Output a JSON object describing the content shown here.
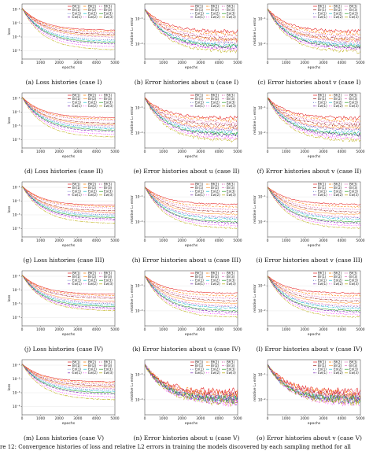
{
  "figure_caption": "re 12: Convergence histories of loss and relative L2 errors in training the models discovered by each sampling method for all",
  "legend_labels": [
    "Bf(1)",
    "Bf(2)",
    "Bf(3)",
    "Br(1)",
    "Br(2)",
    "Br(3)",
    "Eo(1)",
    "Eo(2)",
    "Eo(3)",
    "Ew(1)",
    "Ew(2)",
    "Ew(3)"
  ],
  "legend_colors": [
    "#e41a1c",
    "#ff7f00",
    "#c51b8a",
    "#9e1a1a",
    "#ff9a3c",
    "#e377c2",
    "#1f3fb4",
    "#17becf",
    "#2ca02c",
    "#6a0dad",
    "#ff00ff",
    "#b8a900"
  ],
  "chart_data": [
    {
      "id": "a",
      "caption": "(a) Loss histories (case I)",
      "type": "line",
      "xlabel": "epochs",
      "ylabel": "loss",
      "xlim": [
        0,
        5000
      ],
      "xticks": [
        "0",
        "1000",
        "2000",
        "3000",
        "4000",
        "5000"
      ],
      "yticks": [
        "10⁻¹",
        "10⁻²",
        "10⁻³",
        "10⁻⁴"
      ],
      "ylim_decades": [
        -4.6,
        -0.6
      ],
      "start": -0.9,
      "ends": [
        -2.5,
        -2.6,
        -2.7,
        -2.8,
        -2.9,
        -3.0,
        -3.2,
        -3.3,
        -3.4,
        -3.5,
        -3.7,
        -3.9
      ],
      "noise": 0.02
    },
    {
      "id": "b",
      "caption": "(b) Error histories about u (case I)",
      "type": "line",
      "xlabel": "epochs",
      "ylabel": "relative L₂ error",
      "xlim": [
        0,
        5000
      ],
      "xticks": [
        "0",
        "1000",
        "2000",
        "3000",
        "4000",
        "5000"
      ],
      "yticks": [
        "10⁻¹",
        "10⁻²"
      ],
      "ylim_decades": [
        -2.6,
        -0.4
      ],
      "start": -0.6,
      "ends": [
        -1.5,
        -1.6,
        -1.7,
        -1.8,
        -1.85,
        -1.9,
        -2.0,
        -2.05,
        -2.1,
        -2.15,
        -2.2,
        -2.3
      ],
      "noise": 0.06
    },
    {
      "id": "c",
      "caption": "(c) Error histories about v (case I)",
      "type": "line",
      "xlabel": "epochs",
      "ylabel": "relative L₂ error",
      "xlim": [
        0,
        5000
      ],
      "xticks": [
        "0",
        "1000",
        "2000",
        "3000",
        "4000",
        "5000"
      ],
      "yticks": [
        "10⁻¹",
        "10⁻²"
      ],
      "ylim_decades": [
        -2.6,
        -0.4
      ],
      "start": -0.6,
      "ends": [
        -1.5,
        -1.6,
        -1.7,
        -1.8,
        -1.85,
        -1.9,
        -2.0,
        -2.05,
        -2.1,
        -2.15,
        -2.2,
        -2.3
      ],
      "noise": 0.06
    },
    {
      "id": "d",
      "caption": "(d) Loss histories (case II)",
      "type": "line",
      "xlabel": "epochs",
      "ylabel": "loss",
      "xlim": [
        0,
        5000
      ],
      "xticks": [
        "0",
        "1000",
        "2000",
        "3000",
        "4000",
        "5000"
      ],
      "yticks": [
        "10⁻¹",
        "10⁻²",
        "10⁻³",
        "10⁻⁴"
      ],
      "ylim_decades": [
        -4.6,
        -0.6
      ],
      "start": -0.9,
      "ends": [
        -2.4,
        -2.5,
        -2.6,
        -2.8,
        -2.9,
        -3.0,
        -3.1,
        -3.2,
        -3.3,
        -3.4,
        -3.6,
        -3.8
      ],
      "noise": 0.02
    },
    {
      "id": "e",
      "caption": "(e) Error histories about u (case II)",
      "type": "line",
      "xlabel": "epochs",
      "ylabel": "relative L₂ error",
      "xlim": [
        0,
        5000
      ],
      "xticks": [
        "0",
        "1000",
        "2000",
        "3000",
        "4000",
        "5000"
      ],
      "yticks": [
        "10⁻¹",
        "10⁻²"
      ],
      "ylim_decades": [
        -2.6,
        -0.4
      ],
      "start": -0.6,
      "ends": [
        -1.4,
        -1.5,
        -1.6,
        -1.7,
        -1.8,
        -1.85,
        -1.9,
        -2.0,
        -2.05,
        -2.1,
        -2.2,
        -2.3
      ],
      "noise": 0.06
    },
    {
      "id": "f",
      "caption": "(f) Error histories about v (case II)",
      "type": "line",
      "xlabel": "epochs",
      "ylabel": "relative L₂ error",
      "xlim": [
        0,
        5000
      ],
      "xticks": [
        "0",
        "1000",
        "2000",
        "3000",
        "4000",
        "5000"
      ],
      "yticks": [
        "10⁻¹",
        "10⁻²"
      ],
      "ylim_decades": [
        -2.6,
        -0.4
      ],
      "start": -0.6,
      "ends": [
        -1.4,
        -1.5,
        -1.6,
        -1.7,
        -1.8,
        -1.85,
        -1.9,
        -2.0,
        -2.05,
        -2.1,
        -2.2,
        -2.3
      ],
      "noise": 0.06
    },
    {
      "id": "g",
      "caption": "(g) Loss histories (case III)",
      "type": "line",
      "xlabel": "epochs",
      "ylabel": "loss",
      "xlim": [
        0,
        5000
      ],
      "xticks": [
        "0",
        "1000",
        "2000",
        "3000",
        "4000",
        "5000"
      ],
      "yticks": [
        "10⁻¹",
        "10⁻²",
        "10⁻³",
        "10⁻⁴"
      ],
      "ylim_decades": [
        -4.6,
        -0.6
      ],
      "start": -0.9,
      "ends": [
        -2.3,
        -2.4,
        -2.5,
        -2.7,
        -2.8,
        -2.9,
        -3.0,
        -3.1,
        -3.2,
        -3.3,
        -3.4,
        -3.6
      ],
      "noise": 0.015
    },
    {
      "id": "h",
      "caption": "(h) Error histories about u (case III)",
      "type": "line",
      "xlabel": "epochs",
      "ylabel": "relative L₂ error",
      "xlim": [
        0,
        5000
      ],
      "xticks": [
        "0",
        "1000",
        "2000",
        "3000",
        "4000",
        "5000"
      ],
      "yticks": [
        "10⁻¹",
        "10⁻²"
      ],
      "ylim_decades": [
        -2.6,
        -0.4
      ],
      "start": -0.6,
      "ends": [
        -1.3,
        -1.4,
        -1.5,
        -1.6,
        -1.7,
        -1.8,
        -1.85,
        -1.9,
        -2.0,
        -2.05,
        -2.15,
        -2.25
      ],
      "noise": 0.02
    },
    {
      "id": "i",
      "caption": "(i) Error histories about v (case III)",
      "type": "line",
      "xlabel": "epochs",
      "ylabel": "relative L₂ error",
      "xlim": [
        0,
        5000
      ],
      "xticks": [
        "0",
        "1000",
        "2000",
        "3000",
        "4000",
        "5000"
      ],
      "yticks": [
        "10⁻¹",
        "10⁻²"
      ],
      "ylim_decades": [
        -2.6,
        -0.4
      ],
      "start": -0.6,
      "ends": [
        -1.3,
        -1.4,
        -1.5,
        -1.6,
        -1.7,
        -1.8,
        -1.85,
        -1.9,
        -2.0,
        -2.05,
        -2.15,
        -2.25
      ],
      "noise": 0.02
    },
    {
      "id": "j",
      "caption": "(j) Loss histories (case IV)",
      "type": "line",
      "xlabel": "epochs",
      "ylabel": "loss",
      "xlim": [
        0,
        5000
      ],
      "xticks": [
        "0",
        "1000",
        "2000",
        "3000",
        "4000",
        "5000"
      ],
      "yticks": [
        "10⁻¹",
        "10⁻²",
        "10⁻³",
        "10⁻⁴"
      ],
      "ylim_decades": [
        -4.6,
        -0.6
      ],
      "start": -0.9,
      "ends": [
        -2.3,
        -2.4,
        -2.5,
        -2.6,
        -2.8,
        -2.9,
        -3.0,
        -3.1,
        -3.2,
        -3.3,
        -3.4,
        -3.5
      ],
      "noise": 0.015
    },
    {
      "id": "k",
      "caption": "(k) Error histories about u (case IV)",
      "type": "line",
      "xlabel": "epochs",
      "ylabel": "relative L₂ error",
      "xlim": [
        0,
        5000
      ],
      "xticks": [
        "0",
        "1000",
        "2000",
        "3000",
        "4000",
        "5000"
      ],
      "yticks": [
        "10⁻¹",
        "10⁻²"
      ],
      "ylim_decades": [
        -2.6,
        -0.4
      ],
      "start": -0.6,
      "ends": [
        -1.3,
        -1.4,
        -1.5,
        -1.6,
        -1.7,
        -1.8,
        -1.85,
        -1.9,
        -2.0,
        -2.05,
        -2.15,
        -2.25
      ],
      "noise": 0.02
    },
    {
      "id": "l",
      "caption": "(l) Error histories about v (case IV)",
      "type": "line",
      "xlabel": "epochs",
      "ylabel": "relative L₂ error",
      "xlim": [
        0,
        5000
      ],
      "xticks": [
        "0",
        "1000",
        "2000",
        "3000",
        "4000",
        "5000"
      ],
      "yticks": [
        "10⁻¹",
        "10⁻²"
      ],
      "ylim_decades": [
        -2.6,
        -0.4
      ],
      "start": -0.6,
      "ends": [
        -1.3,
        -1.4,
        -1.5,
        -1.6,
        -1.7,
        -1.8,
        -1.85,
        -1.9,
        -2.0,
        -2.05,
        -2.15,
        -2.25
      ],
      "noise": 0.02
    },
    {
      "id": "m",
      "caption": "(m) Loss histories (case V)",
      "type": "line",
      "xlabel": "epochs",
      "ylabel": "loss",
      "xlim": [
        0,
        5000
      ],
      "xticks": [
        "0",
        "1000",
        "2000",
        "3000",
        "4000",
        "5000"
      ],
      "yticks": [
        "10⁻¹",
        "10⁻²",
        "10⁻³",
        "10⁻⁴"
      ],
      "ylim_decades": [
        -4.6,
        -0.6
      ],
      "start": -0.9,
      "ends": [
        -2.2,
        -2.3,
        -2.4,
        -2.5,
        -2.6,
        -2.7,
        -2.8,
        -2.9,
        -3.0,
        -3.1,
        -3.3,
        -3.5
      ],
      "noise": 0.02
    },
    {
      "id": "n",
      "caption": "(n) Error histories about u (case V)",
      "type": "line",
      "xlabel": "epochs",
      "ylabel": "relative L₂ error",
      "xlim": [
        0,
        5000
      ],
      "xticks": [
        "0",
        "1000",
        "2000",
        "3000",
        "4000",
        "5000"
      ],
      "yticks": [
        "10⁻¹",
        "10⁻²"
      ],
      "ylim_decades": [
        -2.6,
        -0.4
      ],
      "start": -0.6,
      "ends": [
        -1.7,
        -1.75,
        -1.8,
        -1.85,
        -1.9,
        -1.9,
        -1.95,
        -2.0,
        -2.0,
        -2.05,
        -2.1,
        -2.1
      ],
      "noise": 0.14
    },
    {
      "id": "o",
      "caption": "(o) Error histories about v (case V)",
      "type": "line",
      "xlabel": "epochs",
      "ylabel": "relative L₂ error",
      "xlim": [
        0,
        5000
      ],
      "xticks": [
        "0",
        "1000",
        "2000",
        "3000",
        "4000",
        "5000"
      ],
      "yticks": [
        "10⁻¹",
        "10⁻²"
      ],
      "ylim_decades": [
        -2.6,
        -0.4
      ],
      "start": -0.6,
      "ends": [
        -1.7,
        -1.75,
        -1.8,
        -1.85,
        -1.9,
        -1.9,
        -1.95,
        -2.0,
        -2.0,
        -2.05,
        -2.1,
        -2.1
      ],
      "noise": 0.14
    }
  ]
}
